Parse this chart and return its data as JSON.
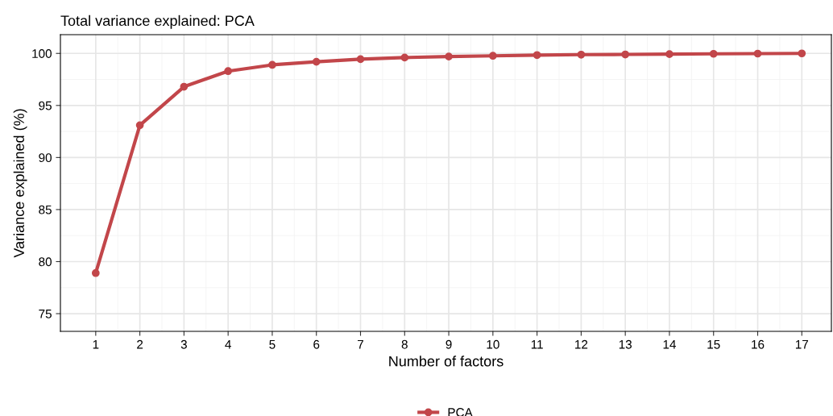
{
  "chart_data": {
    "type": "line",
    "title": "Total variance explained: PCA",
    "xlabel": "Number of factors",
    "ylabel": "Variance explained (%)",
    "x": [
      1,
      2,
      3,
      4,
      5,
      6,
      7,
      8,
      9,
      10,
      11,
      12,
      13,
      14,
      15,
      16,
      17
    ],
    "series": [
      {
        "name": "PCA",
        "color": "#c2464a",
        "values": [
          78.9,
          93.1,
          96.8,
          98.3,
          98.9,
          99.2,
          99.45,
          99.6,
          99.7,
          99.77,
          99.84,
          99.88,
          99.9,
          99.93,
          99.96,
          99.98,
          100
        ]
      }
    ],
    "xlim": [
      0.2,
      17.67
    ],
    "xticks": [
      1,
      2,
      3,
      4,
      5,
      6,
      7,
      8,
      9,
      10,
      11,
      12,
      13,
      14,
      15,
      16,
      17
    ],
    "ylim": [
      73.3,
      101.8
    ],
    "yticks": [
      75,
      80,
      85,
      90,
      95,
      100
    ],
    "grid": true,
    "legend": "bottom",
    "marker": "circle",
    "line_style": "solid"
  }
}
